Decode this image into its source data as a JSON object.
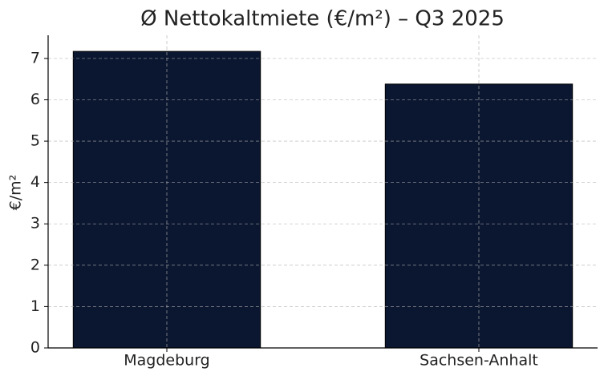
{
  "chart_data": {
    "type": "bar",
    "title": "Ø Nettokaltmiete (€/m²) – Q3 2025",
    "y_label": "€/m²",
    "categories": [
      "Magdeburg",
      "Sachsen-Anhalt"
    ],
    "values": [
      7.17,
      6.38
    ],
    "color": "#0b1730",
    "ylim": [
      0,
      7.56
    ],
    "yticks": [
      0,
      1,
      2,
      3,
      4,
      5,
      6,
      7
    ],
    "grid": true
  }
}
